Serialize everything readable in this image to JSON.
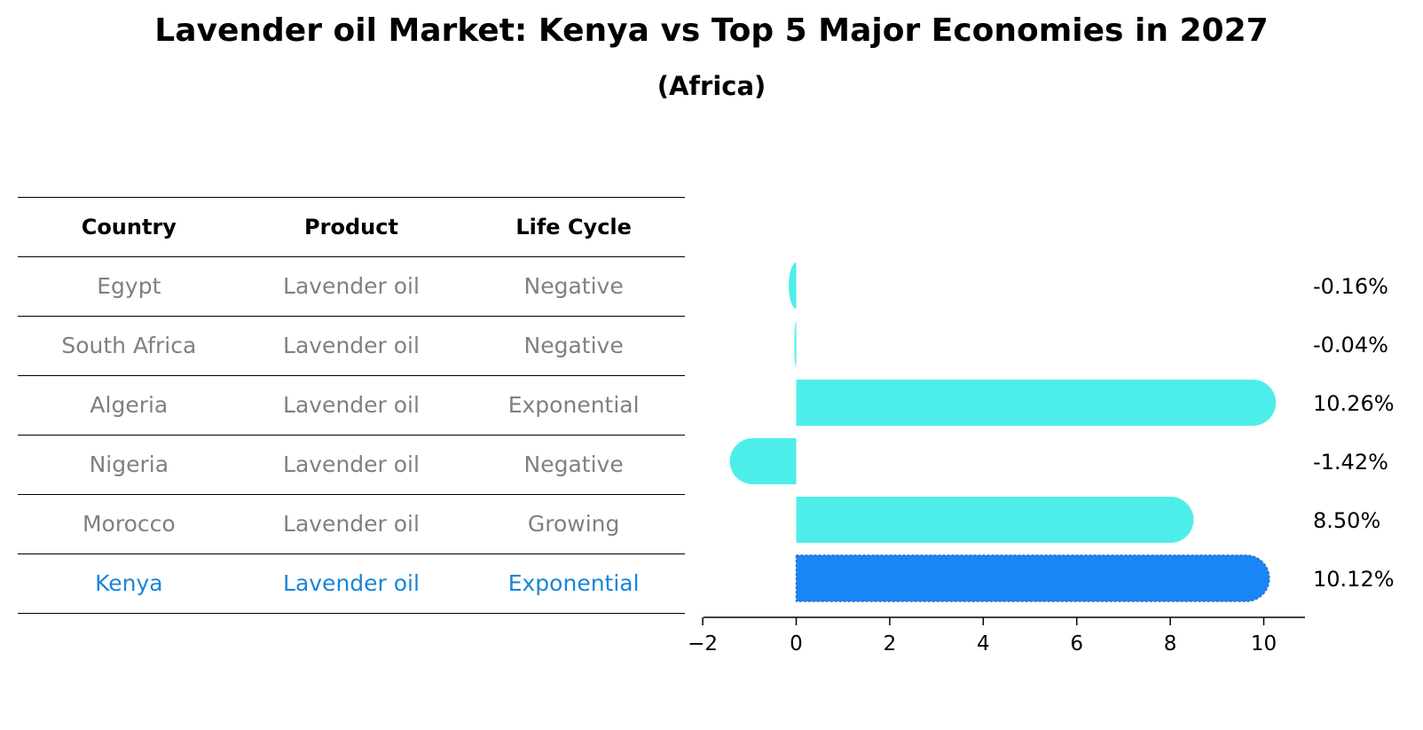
{
  "title": "Lavender oil Market: Kenya vs Top 5 Major Economies in 2027",
  "subtitle": "(Africa)",
  "table": {
    "headers": [
      "Country",
      "Product",
      "Life Cycle"
    ],
    "rows": [
      [
        "Egypt",
        "Lavender oil",
        "Negative"
      ],
      [
        "South Africa",
        "Lavender oil",
        "Negative"
      ],
      [
        "Algeria",
        "Lavender oil",
        "Exponential"
      ],
      [
        "Nigeria",
        "Lavender oil",
        "Negative"
      ],
      [
        "Morocco",
        "Lavender oil",
        "Growing"
      ],
      [
        "Kenya",
        "Lavender oil",
        "Exponential"
      ]
    ]
  },
  "colors": {
    "bar": "#4deeea",
    "highlight_bar": "#1a85f5",
    "highlight_text": "#1a85d8",
    "muted_text": "#808080"
  },
  "chart_data": {
    "type": "bar",
    "orientation": "horizontal",
    "categories": [
      "Egypt",
      "South Africa",
      "Algeria",
      "Nigeria",
      "Morocco",
      "Kenya"
    ],
    "values": [
      -0.16,
      -0.04,
      10.26,
      -1.42,
      8.5,
      10.12
    ],
    "labels": [
      "-0.16%",
      "-0.04%",
      "10.26%",
      "-1.42%",
      "8.50%",
      "10.12%"
    ],
    "highlight": "Kenya",
    "xticks": [
      -2,
      0,
      2,
      4,
      6,
      8,
      10
    ],
    "xtick_labels": [
      "−2",
      "0",
      "2",
      "4",
      "6",
      "8",
      "10"
    ],
    "xlim": [
      -2,
      10.8
    ],
    "grid": false
  }
}
